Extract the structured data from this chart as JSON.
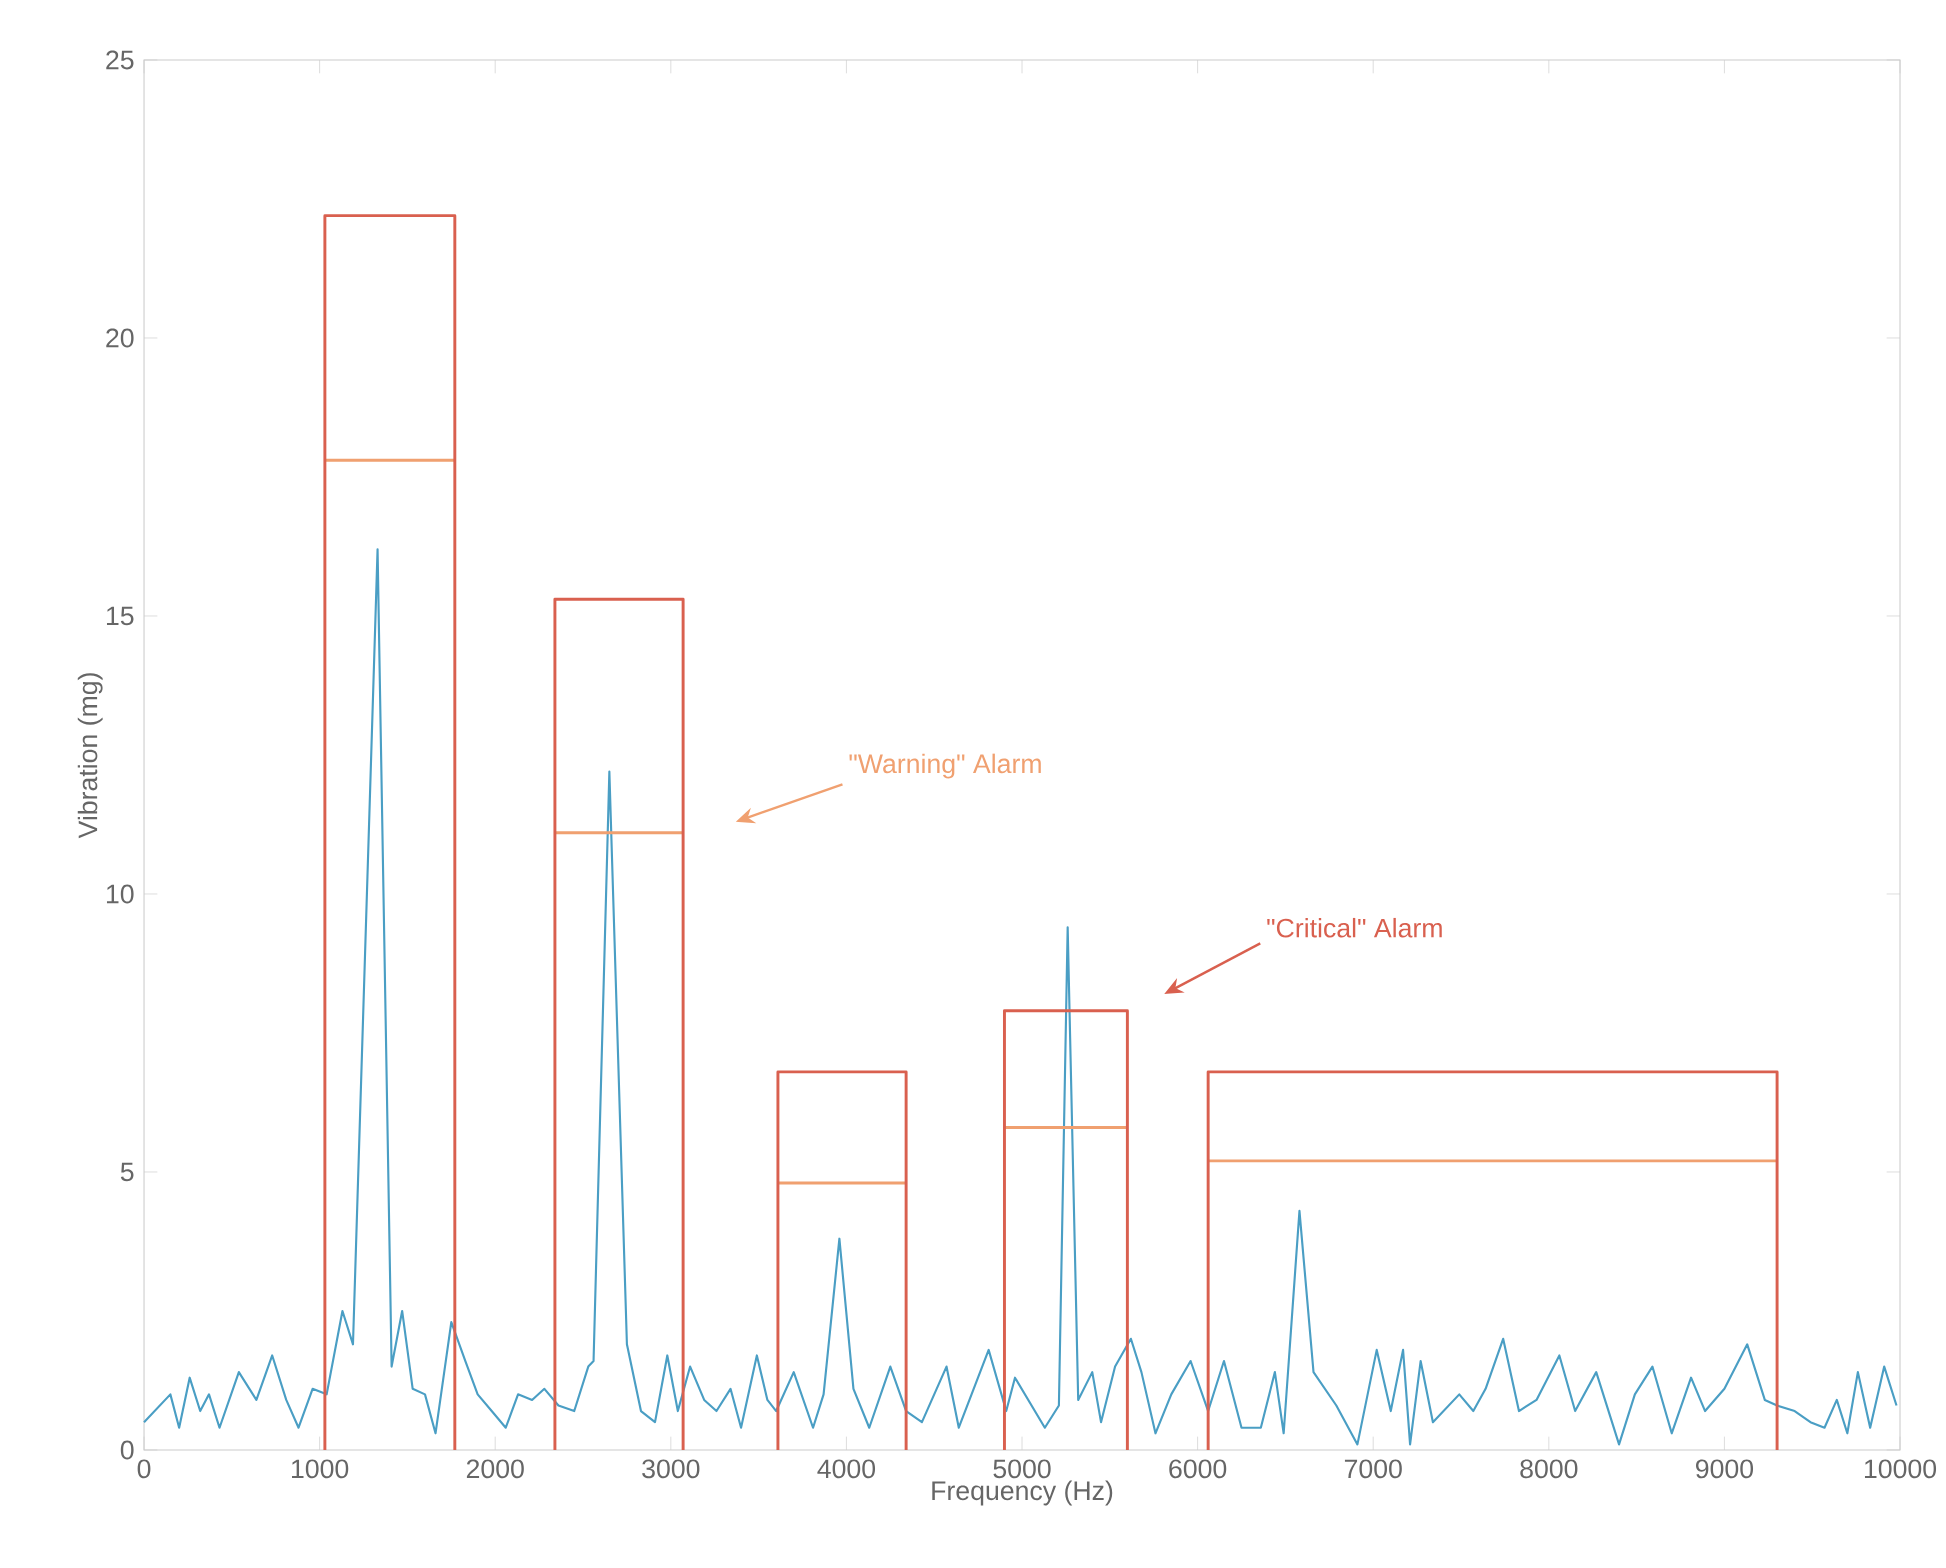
{
  "chart_data": {
    "type": "line",
    "xlabel": "Frequency (Hz)",
    "ylabel": "Vibration (mg)",
    "xlim": [
      0,
      10000
    ],
    "ylim": [
      0,
      25
    ],
    "xticks": [
      0,
      1000,
      2000,
      3000,
      4000,
      5000,
      6000,
      7000,
      8000,
      9000,
      10000
    ],
    "yticks": [
      0,
      5,
      10,
      15,
      20,
      25
    ],
    "series": [
      {
        "color": "#4a9ec4",
        "x": [
          0,
          150,
          200,
          260,
          320,
          370,
          430,
          540,
          640,
          730,
          810,
          880,
          960,
          1040,
          1130,
          1190,
          1330,
          1410,
          1470,
          1530,
          1600,
          1660,
          1750,
          1830,
          1900,
          1980,
          2060,
          2130,
          2210,
          2280,
          2360,
          2450,
          2530,
          2560,
          2650,
          2750,
          2830,
          2910,
          2980,
          3040,
          3110,
          3190,
          3260,
          3340,
          3400,
          3490,
          3550,
          3600,
          3700,
          3810,
          3870,
          3960,
          4040,
          4130,
          4250,
          4340,
          4430,
          4570,
          4640,
          4810,
          4910,
          4960,
          5130,
          5210,
          5260,
          5320,
          5400,
          5450,
          5530,
          5620,
          5680,
          5760,
          5850,
          5960,
          6060,
          6150,
          6250,
          6360,
          6440,
          6490,
          6580,
          6660,
          6790,
          6910,
          7020,
          7100,
          7170,
          7210,
          7270,
          7340,
          7490,
          7570,
          7640,
          7740,
          7830,
          7930,
          8060,
          8150,
          8270,
          8400,
          8490,
          8590,
          8700,
          8810,
          8890,
          9000,
          9130,
          9230,
          9300,
          9400,
          9490,
          9570,
          9640,
          9700,
          9760,
          9830,
          9910,
          9980
        ],
        "values": [
          0.5,
          1.0,
          0.4,
          1.3,
          0.7,
          1.0,
          0.4,
          1.4,
          0.9,
          1.7,
          0.9,
          0.4,
          1.1,
          1.0,
          2.5,
          1.9,
          16.2,
          1.5,
          2.5,
          1.1,
          1.0,
          0.3,
          2.3,
          1.6,
          1.0,
          0.7,
          0.4,
          1.0,
          0.9,
          1.1,
          0.8,
          0.7,
          1.5,
          1.6,
          12.2,
          1.9,
          0.7,
          0.5,
          1.7,
          0.7,
          1.5,
          0.9,
          0.7,
          1.1,
          0.4,
          1.7,
          0.9,
          0.7,
          1.4,
          0.4,
          1.0,
          3.8,
          1.1,
          0.4,
          1.5,
          0.7,
          0.5,
          1.5,
          0.4,
          1.8,
          0.7,
          1.3,
          0.4,
          0.8,
          9.4,
          0.9,
          1.4,
          0.5,
          1.5,
          2.0,
          1.4,
          0.3,
          1.0,
          1.6,
          0.7,
          1.6,
          0.4,
          0.4,
          1.4,
          0.3,
          4.3,
          1.4,
          0.8,
          0.1,
          1.8,
          0.7,
          1.8,
          0.1,
          1.6,
          0.5,
          1.0,
          0.7,
          1.1,
          2.0,
          0.7,
          0.9,
          1.7,
          0.7,
          1.4,
          0.1,
          1.0,
          1.5,
          0.3,
          1.3,
          0.7,
          1.1,
          1.9,
          0.9,
          0.8,
          0.7,
          0.5,
          0.4,
          0.9,
          0.3,
          1.4,
          0.4,
          1.5,
          0.8
        ]
      },
      {
        "color": "#f0a070",
        "x": [
          1030,
          1770,
          null,
          2340,
          3070,
          null,
          3610,
          4340,
          null,
          4900,
          5600,
          null,
          6060,
          9300
        ],
        "values": [
          17.8,
          17.8,
          null,
          11.1,
          11.1,
          null,
          4.8,
          4.8,
          null,
          5.8,
          5.8,
          null,
          5.2,
          5.2
        ]
      },
      {
        "color": "#d9604f",
        "x": [
          1030,
          1030,
          1770,
          1770,
          null,
          2340,
          2340,
          3070,
          3070,
          null,
          3610,
          3610,
          4340,
          4340,
          null,
          4900,
          4900,
          5600,
          5600,
          null,
          6060,
          6060,
          9300,
          9300
        ],
        "values": [
          0,
          22.2,
          22.2,
          0,
          null,
          0,
          15.3,
          15.3,
          0,
          null,
          0,
          6.8,
          6.8,
          0,
          null,
          0,
          7.9,
          7.9,
          0,
          null,
          0,
          6.8,
          6.8,
          0
        ]
      }
    ],
    "annotations": [
      "\"Warning\" Alarm",
      "\"Critical\" Alarm"
    ]
  }
}
